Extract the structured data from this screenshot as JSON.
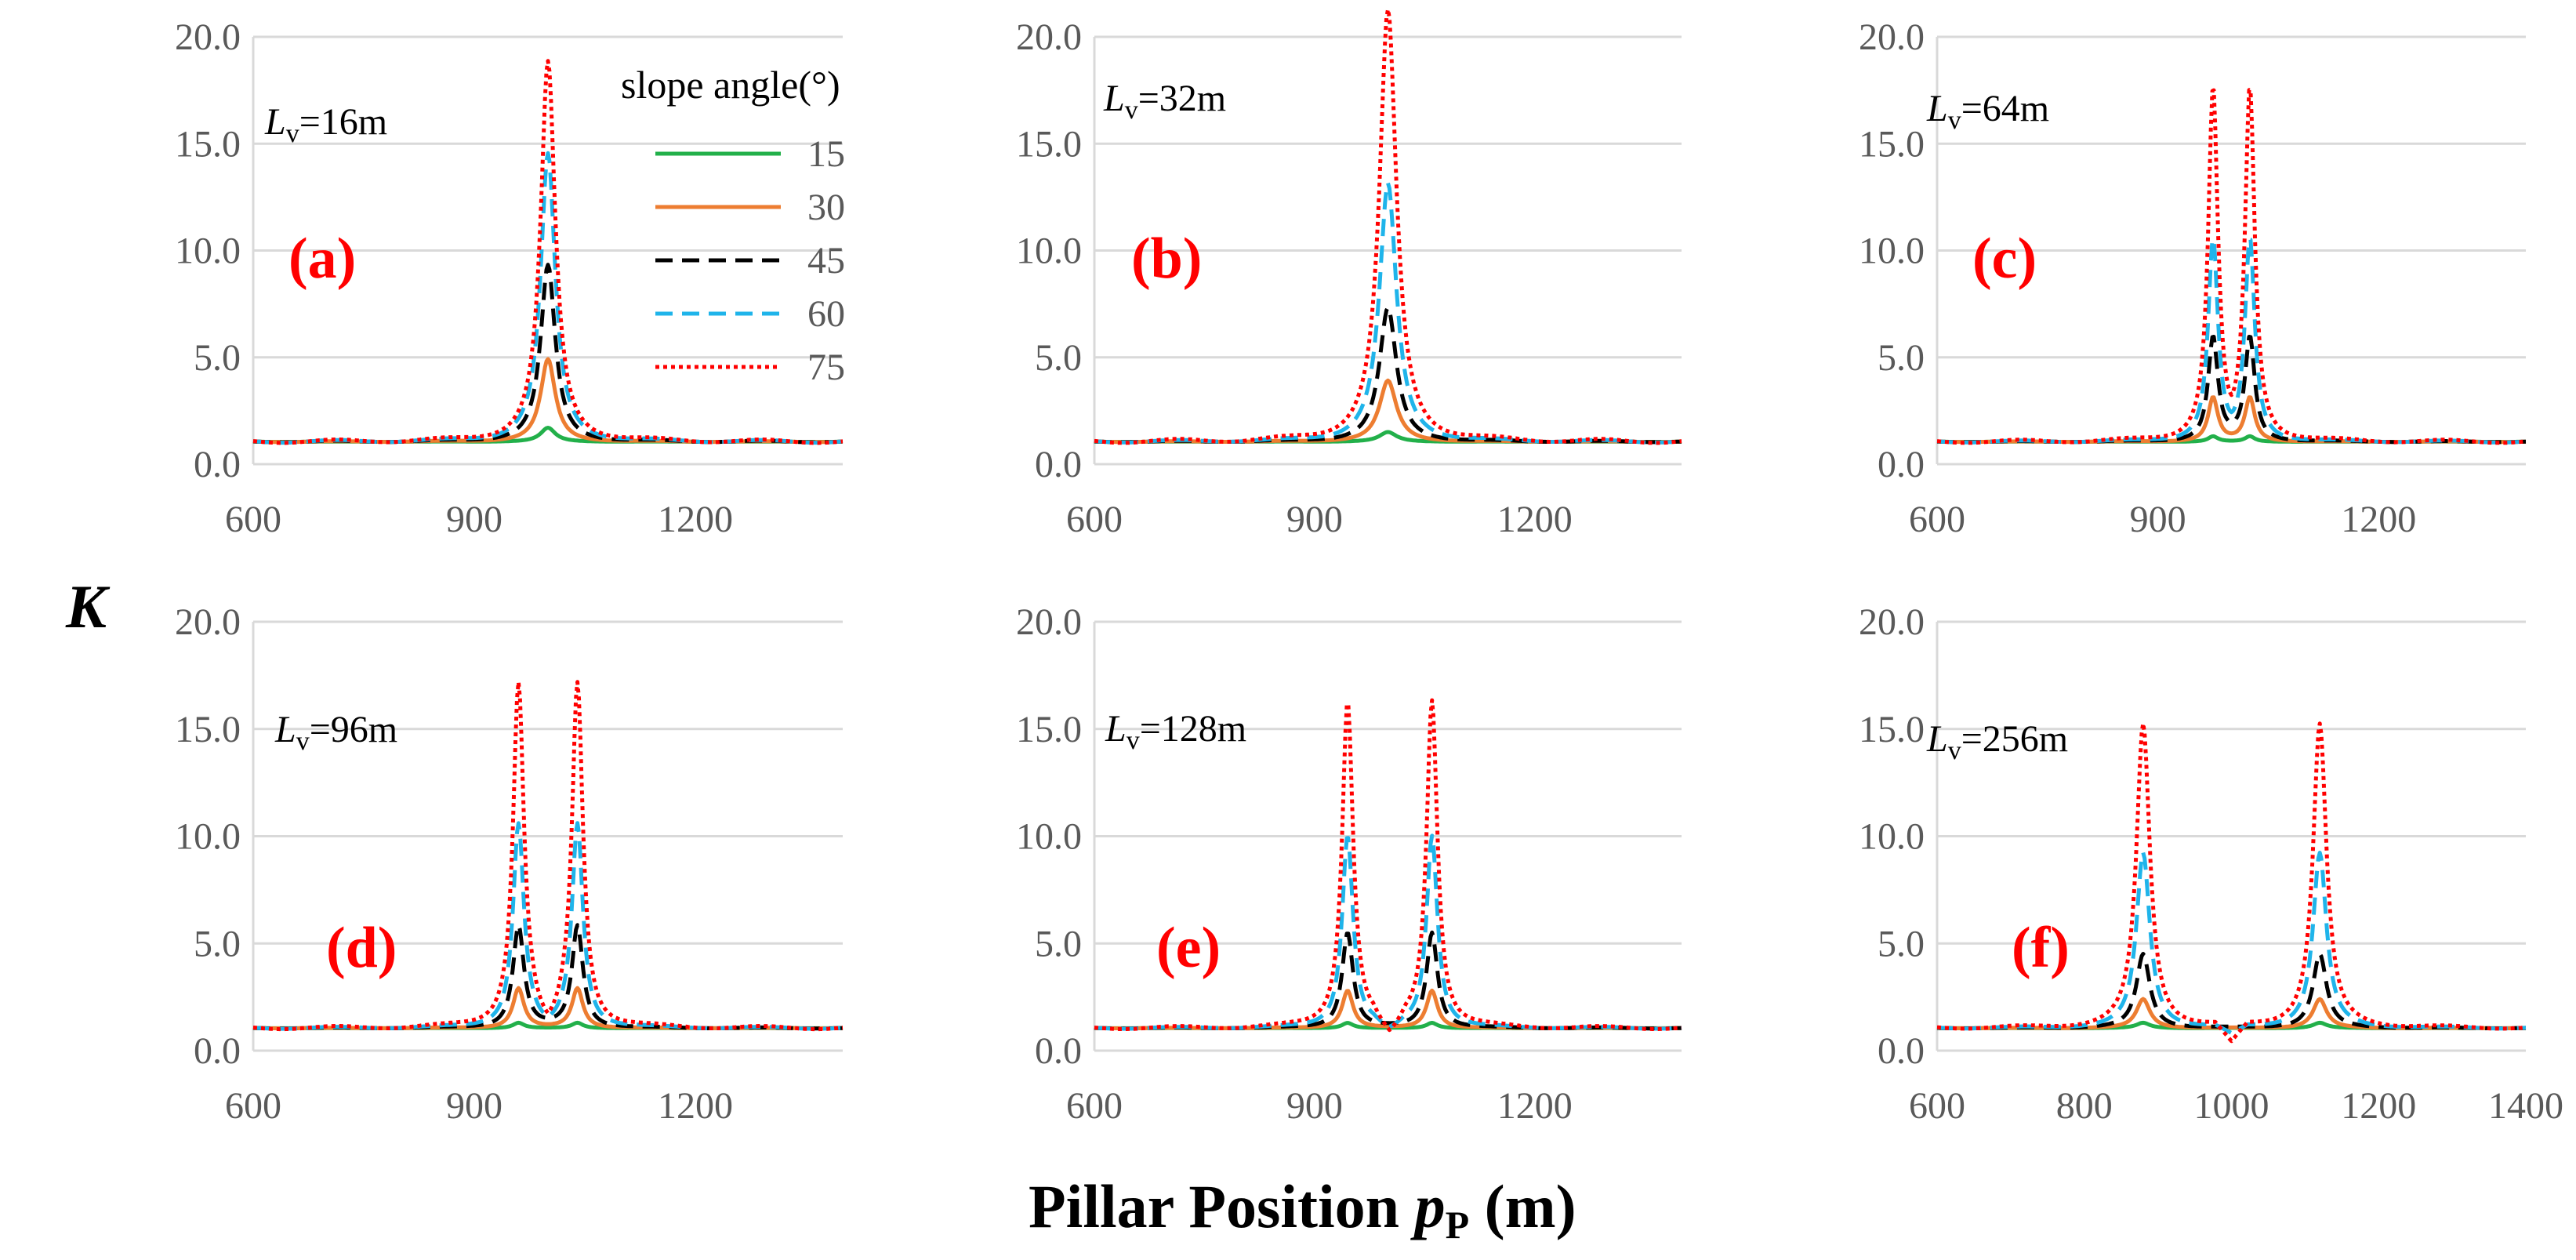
{
  "chart_data": {
    "type": "line",
    "y_axis_label": "K",
    "x_axis_label": {
      "main": "Pillar Position ",
      "var": "p",
      "sub": "P",
      "unit": " (m)"
    },
    "legend": {
      "title": "slope angle(°)",
      "entries": [
        {
          "label": "15",
          "color": "#22b04a",
          "dash": "solid"
        },
        {
          "label": "30",
          "color": "#ed7d31",
          "dash": "solid"
        },
        {
          "label": "45",
          "color": "#000000",
          "dash": "dashed"
        },
        {
          "label": "60",
          "color": "#1fb4ea",
          "dash": "dashed"
        },
        {
          "label": "75",
          "color": "#ff0000",
          "dash": "dotted"
        }
      ]
    },
    "panels": [
      {
        "id": "a",
        "letter": "(a)",
        "lv_var": "L",
        "lv_sub": "v",
        "lv_value": "=16m",
        "xlim": [
          600,
          1400
        ],
        "xticks": [
          "600",
          "900",
          "1200"
        ],
        "xtick_values": [
          600,
          900,
          1200
        ],
        "ylim": [
          0,
          20
        ],
        "yticks": [
          "0.0",
          "5.0",
          "10.0",
          "15.0",
          "20.0"
        ],
        "ytick_values": [
          0,
          5,
          10,
          15,
          20
        ],
        "centers": [
          1000
        ],
        "width": 12,
        "peaks": {
          "15": 1.7,
          "30": 4.9,
          "45": 9.3,
          "60": 14.5,
          "75": 18.8
        }
      },
      {
        "id": "b",
        "letter": "(b)",
        "lv_var": "L",
        "lv_sub": "v",
        "lv_value": "=32m",
        "xlim": [
          600,
          1400
        ],
        "xticks": [
          "600",
          "900",
          "1200"
        ],
        "xtick_values": [
          600,
          900,
          1200
        ],
        "ylim": [
          0,
          20
        ],
        "yticks": [
          "0.0",
          "5.0",
          "10.0",
          "15.0",
          "20.0"
        ],
        "ytick_values": [
          0,
          5,
          10,
          15,
          20
        ],
        "centers": [
          1000
        ],
        "width": 14,
        "peaks": {
          "15": 1.5,
          "30": 3.9,
          "45": 7.3,
          "60": 13.1,
          "75": 21.2
        }
      },
      {
        "id": "c",
        "letter": "(c)",
        "lv_var": "L",
        "lv_sub": "v",
        "lv_value": "=64m",
        "xlim": [
          600,
          1400
        ],
        "xticks": [
          "600",
          "900",
          "1200"
        ],
        "xtick_values": [
          600,
          900,
          1200
        ],
        "ylim": [
          0,
          20
        ],
        "yticks": [
          "0.0",
          "5.0",
          "10.0",
          "15.0",
          "20.0"
        ],
        "ytick_values": [
          0,
          5,
          10,
          15,
          20
        ],
        "centers": [
          975,
          1025
        ],
        "width": 8,
        "peaks": {
          "15": 1.3,
          "30": 3.1,
          "45": 5.9,
          "60": 10.4,
          "75": 17.3
        }
      },
      {
        "id": "d",
        "letter": "(d)",
        "lv_var": "L",
        "lv_sub": "v",
        "lv_value": "=96m",
        "xlim": [
          600,
          1400
        ],
        "xticks": [
          "600",
          "900",
          "1200"
        ],
        "xtick_values": [
          600,
          900,
          1200
        ],
        "ylim": [
          0,
          20
        ],
        "yticks": [
          "0.0",
          "5.0",
          "10.0",
          "15.0",
          "20.0"
        ],
        "ytick_values": [
          0,
          5,
          10,
          15,
          20
        ],
        "centers": [
          960,
          1040
        ],
        "width": 9,
        "peaks": {
          "15": 1.3,
          "30": 2.9,
          "45": 5.8,
          "60": 10.5,
          "75": 17.0
        }
      },
      {
        "id": "e",
        "letter": "(e)",
        "lv_var": "L",
        "lv_sub": "v",
        "lv_value": "=128m",
        "xlim": [
          600,
          1400
        ],
        "xticks": [
          "600",
          "900",
          "1200"
        ],
        "xtick_values": [
          600,
          900,
          1200
        ],
        "ylim": [
          0,
          20
        ],
        "yticks": [
          "0.0",
          "5.0",
          "10.0",
          "15.0",
          "20.0"
        ],
        "ytick_values": [
          0,
          5,
          10,
          15,
          20
        ],
        "centers": [
          945,
          1060
        ],
        "width": 9,
        "peaks": {
          "15": 1.3,
          "30": 2.8,
          "45": 5.5,
          "60": 10.0,
          "75": 16.3
        }
      },
      {
        "id": "f",
        "letter": "(f)",
        "lv_var": "L",
        "lv_sub": "v",
        "lv_value": "=256m",
        "xlim": [
          600,
          1400
        ],
        "xticks": [
          "600",
          "800",
          "1000",
          "1200",
          "1400"
        ],
        "xtick_values": [
          600,
          800,
          1000,
          1200,
          1400
        ],
        "ylim": [
          0,
          20
        ],
        "yticks": [
          "0.0",
          "5.0",
          "10.0",
          "15.0",
          "20.0"
        ],
        "ytick_values": [
          0,
          5,
          10,
          15,
          20
        ],
        "centers": [
          880,
          1120
        ],
        "width": 11,
        "peaks": {
          "15": 1.3,
          "30": 2.4,
          "45": 4.5,
          "60": 9.2,
          "75": 15.2
        }
      }
    ]
  }
}
